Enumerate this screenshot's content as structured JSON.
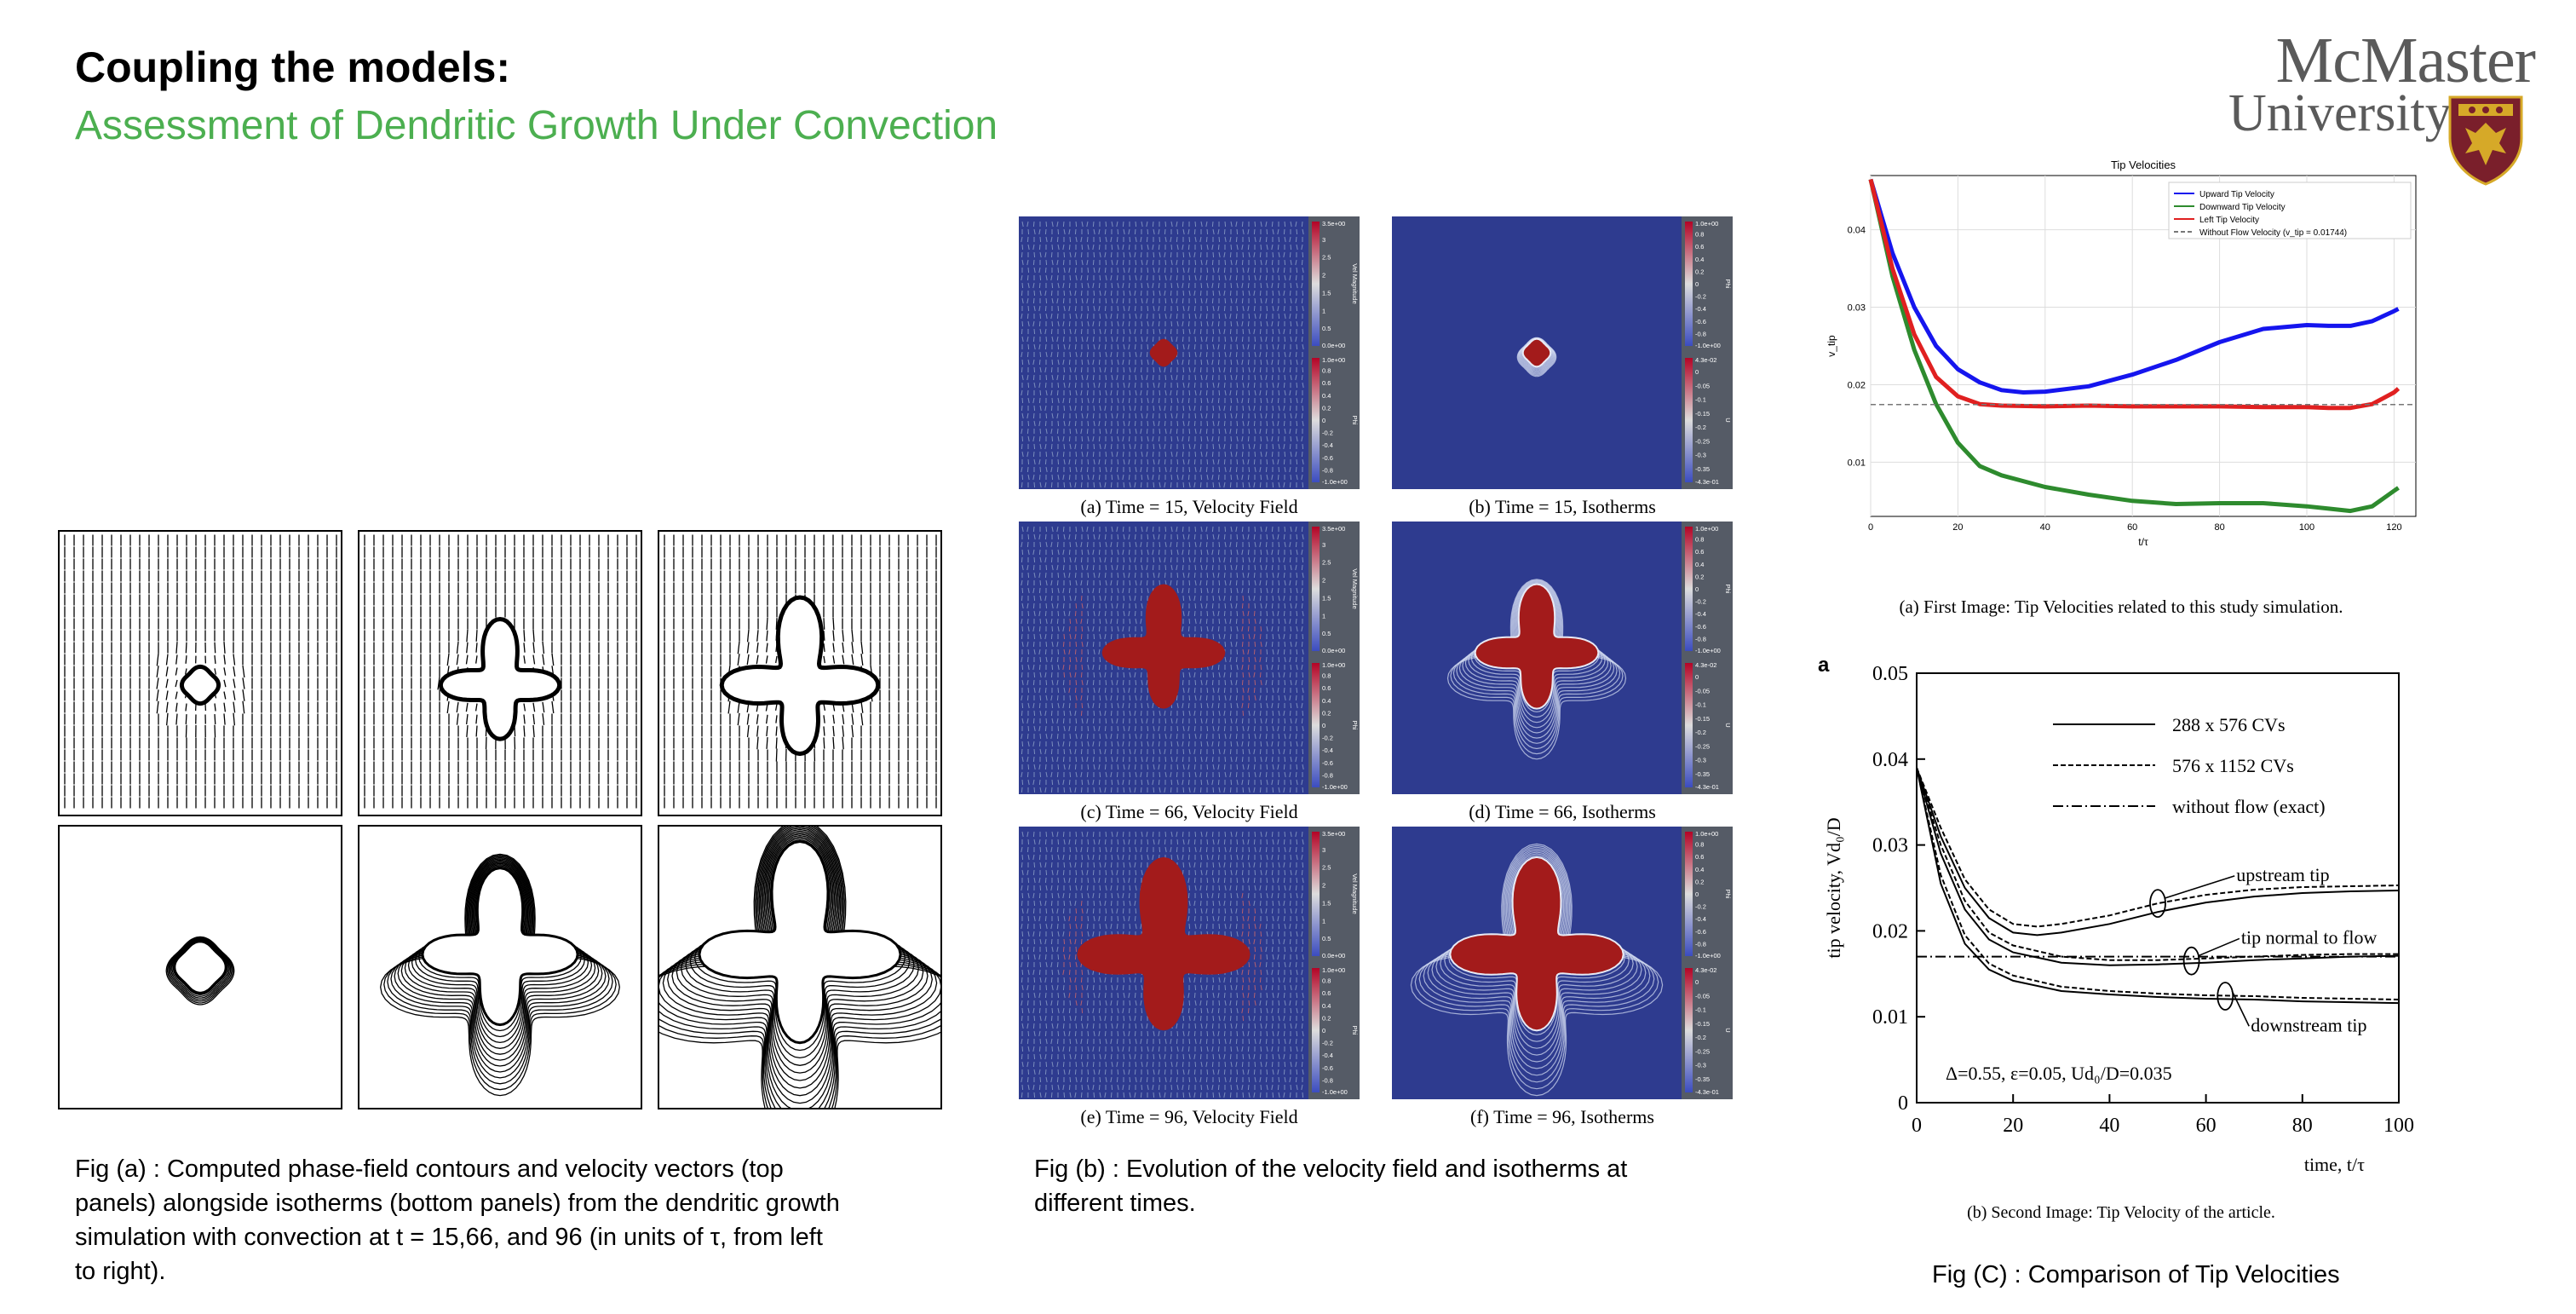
{
  "slide": {
    "title": "Coupling the models:",
    "subtitle": "Assessment of Dendritic Growth Under Convection"
  },
  "logo": {
    "line1": "McMaster",
    "line2": "University",
    "icon": "crest-shield-icon",
    "colors": {
      "text": "#5a5a5a",
      "shield": "#7a1f2b",
      "gold": "#d6a928"
    }
  },
  "fig_a": {
    "caption": "Fig (a) : Computed phase-field contours and velocity vectors (top panels) alongside isotherms (bottom panels) from the dendritic growth simulation with convection at t = 15,66, and 96 (in units of τ, from left to right)."
  },
  "fig_b": {
    "caption": "Fig (b) : Evolution of the velocity field and isotherms at different times.",
    "panels": [
      {
        "label": "(a) Time = 15, Velocity Field"
      },
      {
        "label": "(b) Time = 15, Isotherms"
      },
      {
        "label": "(c) Time = 66, Velocity Field"
      },
      {
        "label": "(d) Time = 66, Isotherms"
      },
      {
        "label": "(e) Time = 96, Velocity Field"
      },
      {
        "label": "(f) Time = 96, Isotherms"
      }
    ],
    "colorbar_velocity": {
      "top": "3.5e+00",
      "ticks": [
        "3",
        "2.5",
        "2",
        "1.5",
        "1",
        "0.5"
      ],
      "bottom": "0.0e+00",
      "label": "Vel Magnitude"
    },
    "colorbar_phi": {
      "top": "1.0e+00",
      "ticks": [
        "0.8",
        "0.6",
        "0.4",
        "0.2",
        "0",
        "-0.2",
        "-0.4",
        "-0.6",
        "-0.8"
      ],
      "bottom": "-1.0e+00",
      "label": "Phi"
    },
    "colorbar_u": {
      "top": "4.3e-02",
      "ticks": [
        "0",
        "-0.05",
        "-0.1",
        "-0.15",
        "-0.2",
        "-0.25",
        "-0.3",
        "-0.35"
      ],
      "bottom": "-4.3e-01",
      "label": "U"
    },
    "colors": {
      "field": "#2e3b8f",
      "crystal": "#a31b1b",
      "colorbar_bg": "#555b66"
    }
  },
  "fig_c": {
    "caption": "Fig (C) : Comparison of Tip Velocities",
    "caption_top": "(a) First Image: Tip Velocities related to this study simulation.",
    "caption_bottom": "(b) Second Image: Tip Velocity of the article."
  },
  "chart_data": [
    {
      "type": "line",
      "title": "Tip Velocities",
      "xlabel": "t/τ",
      "ylabel": "v_tip",
      "xlim": [
        0,
        125
      ],
      "ylim": [
        0.003,
        0.047
      ],
      "xticks": [
        0,
        20,
        40,
        60,
        80,
        100,
        120
      ],
      "yticks": [
        0.01,
        0.02,
        0.03,
        0.04
      ],
      "ytick_labels": [
        "0.01",
        "0.02",
        "0.03",
        "0.04"
      ],
      "grid": true,
      "legend": "top-right",
      "series": [
        {
          "name": "Upward Tip Velocity",
          "color": "#1515ee",
          "x": [
            0,
            5,
            10,
            15,
            20,
            25,
            30,
            35,
            40,
            50,
            60,
            70,
            80,
            90,
            100,
            105,
            110,
            115,
            120,
            121
          ],
          "y": [
            0.0465,
            0.037,
            0.03,
            0.025,
            0.022,
            0.0203,
            0.0193,
            0.019,
            0.0191,
            0.0198,
            0.0213,
            0.0232,
            0.0255,
            0.0272,
            0.0277,
            0.0276,
            0.0276,
            0.0282,
            0.0295,
            0.0298
          ]
        },
        {
          "name": "Downward Tip Velocity",
          "color": "#2e8b2e",
          "x": [
            0,
            5,
            10,
            15,
            20,
            25,
            30,
            40,
            50,
            60,
            70,
            80,
            90,
            100,
            105,
            110,
            115,
            120,
            121
          ],
          "y": [
            0.0465,
            0.034,
            0.0245,
            0.0175,
            0.0125,
            0.0095,
            0.0083,
            0.0068,
            0.0058,
            0.005,
            0.0046,
            0.0047,
            0.0047,
            0.0043,
            0.004,
            0.0037,
            0.0043,
            0.0063,
            0.0067
          ]
        },
        {
          "name": "Left Tip Velocity",
          "color": "#e02020",
          "x": [
            0,
            5,
            10,
            15,
            20,
            25,
            30,
            40,
            50,
            60,
            70,
            80,
            90,
            100,
            105,
            110,
            115,
            120,
            121
          ],
          "y": [
            0.0465,
            0.035,
            0.0265,
            0.021,
            0.0185,
            0.0175,
            0.0173,
            0.0172,
            0.0173,
            0.0172,
            0.0172,
            0.0172,
            0.0171,
            0.0171,
            0.017,
            0.017,
            0.0175,
            0.019,
            0.0195
          ]
        },
        {
          "name": "Without Flow Velocity (v_tip = 0.01744)",
          "color": "#777777",
          "dashed": true,
          "x": [
            0,
            125
          ],
          "y": [
            0.01744,
            0.01744
          ]
        }
      ]
    },
    {
      "type": "line",
      "title": "",
      "panel_label": "a",
      "xlabel": "time, t/τ",
      "ylabel": "tip velocity, Vd₀/D",
      "xlim": [
        0,
        100
      ],
      "ylim": [
        0,
        0.05
      ],
      "xticks": [
        0,
        20,
        40,
        60,
        80,
        100
      ],
      "yticks": [
        0,
        0.01,
        0.02,
        0.03,
        0.04,
        0.05
      ],
      "ytick_labels": [
        "0",
        "0.01",
        "0.02",
        "0.03",
        "0.04",
        "0.05"
      ],
      "grid": false,
      "legend": "top-center",
      "annotation": "Δ=0.55, ε=0.05, Ud₀/D=0.035",
      "curve_labels": [
        "upstream tip",
        "tip normal to flow",
        "downstream tip"
      ],
      "series": [
        {
          "name": "288 x 576 CVs",
          "style": "solid",
          "x": [
            0,
            5,
            10,
            15,
            20,
            25,
            30,
            40,
            50,
            60,
            70,
            80,
            90,
            100
          ],
          "y": [
            0.039,
            0.031,
            0.025,
            0.0215,
            0.0198,
            0.0195,
            0.0198,
            0.0208,
            0.0222,
            0.0233,
            0.024,
            0.0244,
            0.0246,
            0.0247
          ]
        },
        {
          "name": "576 x 1152 CVs",
          "style": "dashed",
          "x": [
            0,
            5,
            10,
            15,
            20,
            25,
            30,
            40,
            50,
            60,
            70,
            80,
            90,
            100
          ],
          "y": [
            0.039,
            0.032,
            0.026,
            0.0225,
            0.0208,
            0.0205,
            0.0208,
            0.0218,
            0.0232,
            0.0242,
            0.0248,
            0.0251,
            0.0252,
            0.0253
          ]
        },
        {
          "name": "without flow (exact)",
          "style": "dashdot",
          "x": [
            0,
            100
          ],
          "y": [
            0.017,
            0.017
          ]
        },
        {
          "name": "tip normal to flow (288)",
          "style": "solid",
          "x": [
            0,
            5,
            10,
            15,
            20,
            30,
            40,
            50,
            60,
            70,
            80,
            90,
            100
          ],
          "y": [
            0.039,
            0.029,
            0.0225,
            0.019,
            0.0175,
            0.0163,
            0.016,
            0.0161,
            0.0163,
            0.0166,
            0.0168,
            0.017,
            0.0171
          ]
        },
        {
          "name": "tip normal to flow (576)",
          "style": "dashed",
          "x": [
            0,
            5,
            10,
            15,
            20,
            30,
            40,
            50,
            60,
            70,
            80,
            90,
            100
          ],
          "y": [
            0.039,
            0.03,
            0.0235,
            0.0198,
            0.0183,
            0.017,
            0.0166,
            0.0166,
            0.0168,
            0.017,
            0.0172,
            0.0173,
            0.0173
          ]
        },
        {
          "name": "downstream tip (288)",
          "style": "solid",
          "x": [
            0,
            5,
            10,
            15,
            20,
            30,
            40,
            50,
            60,
            70,
            80,
            90,
            100
          ],
          "y": [
            0.039,
            0.0255,
            0.0185,
            0.0155,
            0.0142,
            0.013,
            0.0126,
            0.0123,
            0.0121,
            0.012,
            0.0118,
            0.0117,
            0.0116
          ]
        },
        {
          "name": "downstream tip (576)",
          "style": "dashed",
          "x": [
            0,
            5,
            10,
            15,
            20,
            30,
            40,
            50,
            60,
            70,
            80,
            90,
            100
          ],
          "y": [
            0.039,
            0.0265,
            0.0195,
            0.0162,
            0.0148,
            0.0135,
            0.013,
            0.0127,
            0.0125,
            0.0124,
            0.0122,
            0.0121,
            0.012
          ]
        }
      ]
    }
  ]
}
